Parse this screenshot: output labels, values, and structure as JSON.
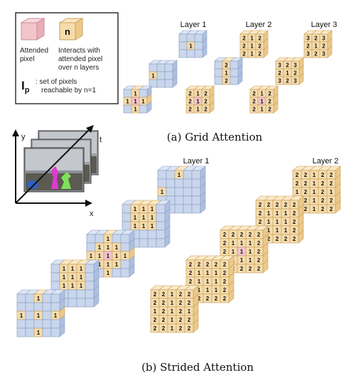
{
  "legend": {
    "attended_label": "Attended\npixel",
    "interacts_symbol": "n",
    "interacts_label": "Interacts with\nattended pixel\nover n layers",
    "ip_symbol": "I",
    "ip_subscript": "p",
    "ip_label": ": set of pixels\nreachable by n=1"
  },
  "inset": {
    "x_label": "x",
    "y_label": "y",
    "t_label": "t"
  },
  "grid_attention": {
    "caption": "(a) Grid Attention",
    "layer_labels": [
      "Layer 1",
      "Layer 2",
      "Layer 3"
    ],
    "layer1_rows": [
      [
        "",
        "1",
        ""
      ],
      [
        "1",
        "1",
        "1"
      ],
      [
        "",
        "1",
        ""
      ]
    ],
    "layer2_rows": [
      [
        "2",
        "1",
        "2"
      ],
      [
        "2",
        "1",
        "2"
      ],
      [
        "2",
        "1",
        "2"
      ]
    ],
    "layer3_rows": [
      [
        "3",
        "2",
        "3"
      ],
      [
        "2",
        "1",
        "2"
      ],
      [
        "3",
        "2",
        "3"
      ]
    ]
  },
  "strided_attention": {
    "caption": "(b) Strided Attention",
    "layer_labels": [
      "Layer 1",
      "Layer 2"
    ],
    "layer1_center_rows": [
      [
        "",
        "",
        "1",
        "",
        ""
      ],
      [
        "",
        "1",
        "1",
        "1",
        ""
      ],
      [
        "1",
        "1",
        "1",
        "1",
        "1"
      ],
      [
        "",
        "1",
        "1",
        "1",
        ""
      ],
      [
        "",
        "",
        "1",
        "",
        ""
      ]
    ],
    "layer1_side_rows": [
      [
        "",
        "1",
        "1",
        "1",
        ""
      ],
      [
        "",
        "1",
        "1",
        "1",
        ""
      ],
      [
        "",
        "1",
        "1",
        "1",
        ""
      ],
      [
        "",
        "",
        "",
        "",
        ""
      ],
      [
        "",
        "",
        "",
        "",
        ""
      ]
    ],
    "layer1_edge_rows": [
      [
        "",
        "",
        "1",
        "",
        ""
      ],
      [
        "",
        "",
        "",
        "",
        ""
      ],
      [
        "1",
        "",
        "1",
        "",
        "1"
      ],
      [
        "",
        "",
        "",
        "",
        ""
      ],
      [
        "",
        "",
        "1",
        "",
        ""
      ]
    ],
    "layer2_center_rows": [
      [
        "2",
        "2",
        "2",
        "2",
        "2"
      ],
      [
        "2",
        "1",
        "1",
        "1",
        "2"
      ],
      [
        "2",
        "1",
        "1",
        "1",
        "2"
      ],
      [
        "2",
        "1",
        "1",
        "1",
        "2"
      ],
      [
        "2",
        "2",
        "2",
        "2",
        "2"
      ]
    ],
    "layer2_front_rows": [
      [
        "2",
        "2",
        "1",
        "2",
        "2"
      ],
      [
        "2",
        "2",
        "1",
        "2",
        "2"
      ],
      [
        "1",
        "2",
        "1",
        "2",
        "1"
      ],
      [
        "2",
        "2",
        "1",
        "2",
        "2"
      ],
      [
        "2",
        "2",
        "1",
        "2",
        "2"
      ]
    ],
    "layer2_back_rows": [
      [
        "2",
        "2",
        "1",
        "2",
        "2"
      ],
      [
        "2",
        "2",
        "1",
        "2",
        "2"
      ],
      [
        "1",
        "2",
        "1",
        "2",
        "1"
      ],
      [
        "2",
        "2",
        "1",
        "2",
        "2"
      ],
      [
        "2",
        "2",
        "1",
        "2",
        "2"
      ]
    ]
  },
  "colors": {
    "blue_cube": "#c9d6ec",
    "blue_edge": "#8fa3c7",
    "tan_cube": "#f6dcac",
    "tan_edge": "#c9a15e",
    "pink_cube": "#f3c4cc",
    "pink_edge": "#c98c97",
    "green": "#7fe05a",
    "magenta": "#e03ad0",
    "sky": "#9aa0a6"
  }
}
